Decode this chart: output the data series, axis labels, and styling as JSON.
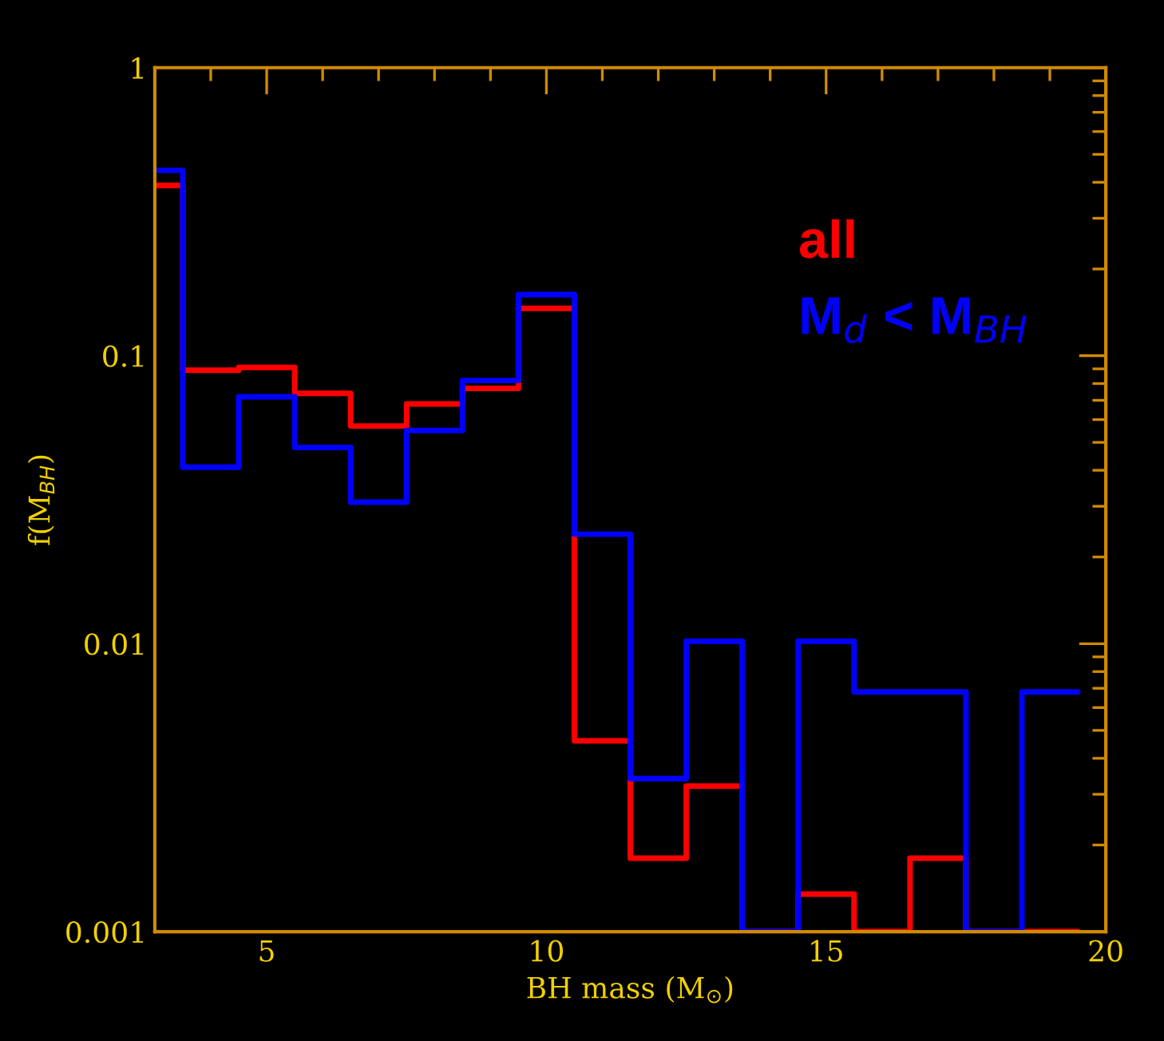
{
  "chart_data": {
    "type": "histogram",
    "xlabel": "BH mass (M$_{⊙}$)",
    "ylabel": "f(M$_{BH}$)",
    "bins": [
      3,
      3.5,
      4.5,
      5.5,
      6.5,
      7.5,
      8.5,
      9.5,
      10.5,
      11.5,
      12.5,
      13.5,
      14.5,
      15.5,
      16.5,
      17.5,
      18.5,
      19.5
    ],
    "series": [
      {
        "name": "all",
        "color": "#ff0000",
        "values": [
          0.39,
          0.089,
          0.091,
          0.074,
          0.057,
          0.068,
          0.077,
          0.146,
          0.0046,
          0.0018,
          0.0032,
          null,
          0.00135,
          null,
          0.0018,
          null,
          null
        ]
      },
      {
        "name": "M$_{d}$ < M$_{BH}$",
        "color": "#0000ff",
        "values": [
          0.44,
          0.041,
          0.072,
          0.048,
          0.031,
          0.055,
          0.082,
          0.163,
          0.024,
          0.0034,
          0.0102,
          null,
          0.0102,
          0.0068,
          0.0068,
          null,
          0.0068
        ]
      }
    ],
    "log": "y",
    "xlim": [
      3,
      20
    ],
    "xticks": [
      5,
      10,
      15,
      20
    ],
    "ylim": [
      0.001,
      1
    ],
    "yticks": [
      0.001,
      0.01,
      0.1,
      1
    ],
    "grid": false,
    "legend": "top right"
  }
}
